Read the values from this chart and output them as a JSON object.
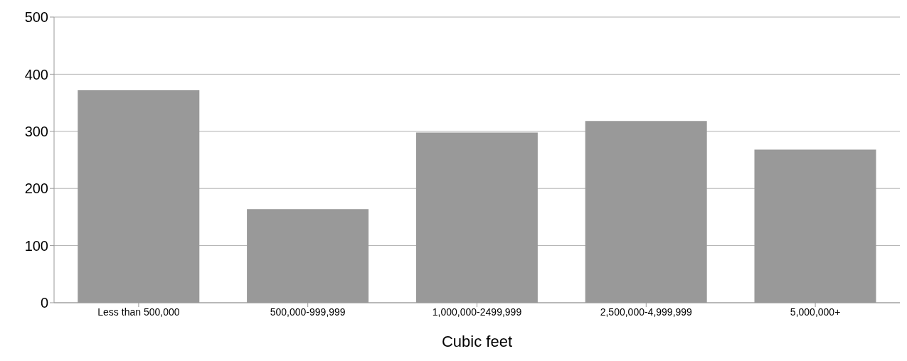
{
  "chart_data": {
    "type": "bar",
    "xlabel": "Cubic feet",
    "categories": [
      "Less than 500,000",
      "500,000-999,999",
      "1,000,000-2499,999",
      "2,500,000-4,999,999",
      "5,000,000+"
    ],
    "values": [
      372,
      164,
      298,
      318,
      268
    ],
    "color": "#999999",
    "ylim": [
      0,
      500
    ],
    "yticks": [
      0,
      100,
      200,
      300,
      400,
      500
    ],
    "grid": "y"
  }
}
